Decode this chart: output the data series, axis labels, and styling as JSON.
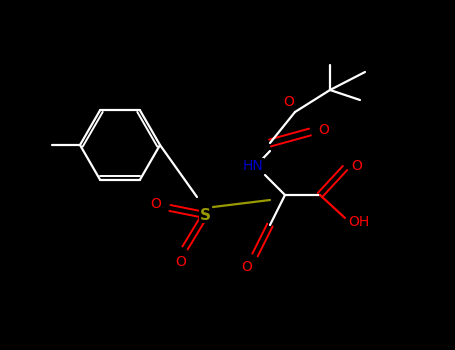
{
  "background_color": "#000000",
  "bond_color": "#ffffff",
  "figsize": [
    4.55,
    3.5
  ],
  "dpi": 100,
  "atom_colors": {
    "O": "#ff0000",
    "N": "#0000cc",
    "S": "#999900",
    "C": "#ffffff"
  }
}
